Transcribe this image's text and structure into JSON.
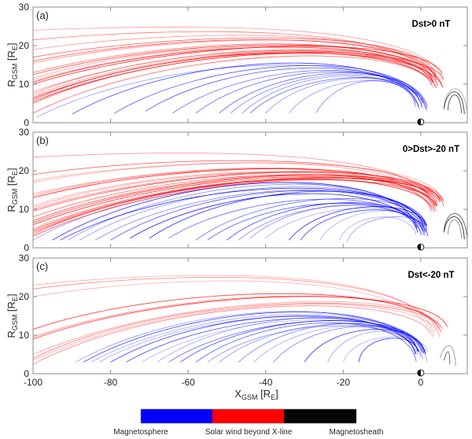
{
  "chart_data": {
    "type": "line",
    "title": "",
    "xlabel": "X_GSM [R_E]",
    "xlabel_main": "X",
    "xlabel_sub": "GSM",
    "xlabel_unit_open": " [R",
    "xlabel_unit_sub": "E",
    "xlabel_unit_close": "]",
    "ylabel": "R_GSM [R_E]",
    "ylabel_main": "R",
    "ylabel_sub": "GSM",
    "ylabel_unit_open": " [R",
    "ylabel_unit_sub": "E",
    "ylabel_unit_close": "]",
    "xlim": [
      -100,
      12
    ],
    "ylim": [
      0,
      30
    ],
    "x_ticks": [
      -100,
      -80,
      -60,
      -40,
      -20,
      0
    ],
    "x_tick_labels": [
      "-100",
      "-80",
      "-60",
      "-40",
      "-20",
      "0"
    ],
    "y_ticks": [
      0,
      10,
      20,
      30
    ],
    "y_tick_labels": [
      "0",
      "10",
      "20",
      "30"
    ],
    "grid": false,
    "legend": {
      "placement": "bottom-center",
      "entries": [
        {
          "name": "Magnetosphere",
          "color": "#0000ff"
        },
        {
          "name": "Solar wind beyond X-line",
          "color": "#ff0000"
        },
        {
          "name": "Magnetosheath",
          "color": "#000000"
        }
      ]
    },
    "earth_marker": {
      "x": 0,
      "y": 0
    },
    "panels": [
      {
        "tag": "(a)",
        "condition": "Dst>0 nT",
        "series": [
          {
            "name": "Solar wind beyond X-line",
            "color": "#ff0000",
            "start_points": [
              [
                -100,
                24
              ],
              [
                -100,
                21.5
              ],
              [
                -100,
                19
              ],
              [
                -100,
                17
              ],
              [
                -100,
                16
              ],
              [
                -100,
                15.5
              ],
              [
                -100,
                13
              ],
              [
                -100,
                12.5
              ],
              [
                -100,
                11.5
              ],
              [
                -100,
                11
              ],
              [
                -100,
                10.5
              ],
              [
                -100,
                10
              ],
              [
                -100,
                8
              ],
              [
                -100,
                7.5
              ],
              [
                -100,
                7
              ],
              [
                -100,
                6.5
              ],
              [
                -100,
                6
              ],
              [
                -100,
                5.5
              ],
              [
                -100,
                5
              ],
              [
                -100,
                2.5
              ]
            ],
            "peak_R_range": [
              19,
              26
            ],
            "end_x": 6
          },
          {
            "name": "Magnetosphere",
            "color": "#0000ff",
            "start_points": [
              [
                -99,
                1.5
              ],
              [
                -90,
                2.2
              ],
              [
                -79,
                2.5
              ],
              [
                -71,
                3
              ],
              [
                -64,
                2.5
              ],
              [
                -58,
                2.5
              ],
              [
                -52,
                2.5
              ],
              [
                -49,
                2.5
              ],
              [
                -46,
                2.5
              ],
              [
                -44,
                2.5
              ],
              [
                -40,
                2.5
              ],
              [
                -34,
                2.5
              ],
              [
                -27,
                2.5
              ]
            ],
            "peak_R_range": [
              9,
              19
            ],
            "end_x": 2
          },
          {
            "name": "Magnetosheath",
            "color": "#000000",
            "start_points": [
              [
                6,
                4
              ],
              [
                6,
                3.5
              ],
              [
                7,
                3.2
              ]
            ],
            "peak_R_range": [
              8,
              10
            ],
            "end_x": 12
          }
        ]
      },
      {
        "tag": "(b)",
        "condition": "0>Dst>-20 nT",
        "series": [
          {
            "name": "Solar wind beyond X-line",
            "color": "#ff0000",
            "start_points": [
              [
                -100,
                23.5
              ],
              [
                -100,
                19
              ],
              [
                -100,
                17.5
              ],
              [
                -100,
                17
              ],
              [
                -100,
                14
              ],
              [
                -100,
                13.5
              ],
              [
                -100,
                13
              ],
              [
                -100,
                11
              ],
              [
                -100,
                10.5
              ],
              [
                -100,
                10
              ],
              [
                -100,
                9.5
              ],
              [
                -100,
                8
              ],
              [
                -100,
                7
              ],
              [
                -100,
                6.5
              ],
              [
                -100,
                6
              ],
              [
                -100,
                5
              ],
              [
                -100,
                4.5
              ],
              [
                -100,
                4
              ],
              [
                -100,
                3.5
              ],
              [
                -100,
                3
              ]
            ],
            "peak_R_range": [
              19,
              26
            ],
            "end_x": 6
          },
          {
            "name": "Magnetosphere",
            "color": "#0000ff",
            "start_points": [
              [
                -100,
                2
              ],
              [
                -95,
                2
              ],
              [
                -93,
                2
              ],
              [
                -91,
                2
              ],
              [
                -88,
                2
              ],
              [
                -84,
                2
              ],
              [
                -80,
                2
              ],
              [
                -75,
                2.5
              ],
              [
                -70,
                2.5
              ],
              [
                -65,
                2.5
              ],
              [
                -58,
                2
              ],
              [
                -55,
                2
              ],
              [
                -50,
                2
              ],
              [
                -47,
                2
              ],
              [
                -44,
                2.5
              ],
              [
                -40,
                2.5
              ],
              [
                -34,
                2
              ],
              [
                -31,
                2
              ],
              [
                -26,
                2
              ],
              [
                -21,
                2
              ],
              [
                -19,
                1.5
              ]
            ],
            "peak_R_range": [
              7,
              20
            ],
            "end_x": 2
          },
          {
            "name": "Magnetosheath",
            "color": "#000000",
            "start_points": [
              [
                6,
                4.5
              ],
              [
                6,
                4
              ],
              [
                7,
                3.5
              ]
            ],
            "peak_R_range": [
              8,
              10
            ],
            "end_x": 12
          }
        ]
      },
      {
        "tag": "(c)",
        "condition": "Dst<-20 nT",
        "series": [
          {
            "name": "Solar wind beyond X-line",
            "color": "#ff0000",
            "start_points": [
              [
                -100,
                23
              ],
              [
                -100,
                22
              ],
              [
                -100,
                20
              ],
              [
                -100,
                11.5
              ],
              [
                -100,
                9.5
              ],
              [
                -100,
                9
              ],
              [
                -100,
                5
              ],
              [
                -100,
                4
              ],
              [
                -100,
                3.5
              ],
              [
                -100,
                2.5
              ]
            ],
            "peak_R_range": [
              19,
              28
            ],
            "end_x": 7
          },
          {
            "name": "Magnetosphere",
            "color": "#0000ff",
            "start_points": [
              [
                -89,
                3
              ],
              [
                -87,
                3
              ],
              [
                -85,
                3
              ],
              [
                -83,
                3
              ],
              [
                -80,
                3
              ],
              [
                -76,
                3
              ],
              [
                -72,
                3
              ],
              [
                -68,
                3
              ],
              [
                -65,
                3
              ],
              [
                -62,
                3
              ],
              [
                -58,
                3
              ],
              [
                -55,
                3
              ],
              [
                -52,
                3
              ],
              [
                -47,
                3
              ],
              [
                -43,
                3
              ],
              [
                -38,
                3
              ],
              [
                -30,
                3
              ],
              [
                -24,
                3
              ],
              [
                -20,
                3
              ],
              [
                -16,
                3
              ]
            ],
            "peak_R_range": [
              9,
              20
            ],
            "end_x": 3
          },
          {
            "name": "Magnetosheath",
            "color": "#000000",
            "start_points": [
              [
                5,
                4
              ],
              [
                6,
                3.5
              ]
            ],
            "peak_R_range": [
              6,
              8
            ],
            "end_x": 9
          }
        ]
      }
    ]
  }
}
